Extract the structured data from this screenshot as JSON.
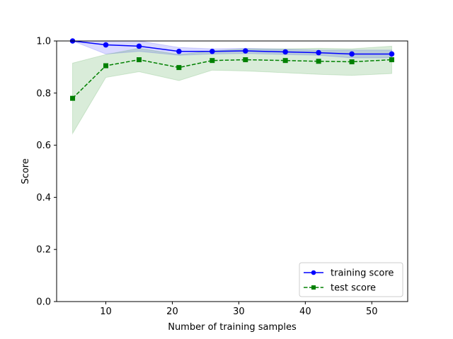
{
  "chart_data": {
    "type": "line",
    "title": "",
    "xlabel": "Number of training samples",
    "ylabel": "Score",
    "xlim": [
      2.6,
      55.4
    ],
    "ylim": [
      0.0,
      1.0
    ],
    "xticks": [
      10,
      20,
      30,
      40,
      50
    ],
    "yticks": [
      0.0,
      0.2,
      0.4,
      0.6,
      0.8,
      1.0
    ],
    "xtick_labels": [
      "10",
      "20",
      "30",
      "40",
      "50"
    ],
    "ytick_labels": [
      "0.0",
      "0.2",
      "0.4",
      "0.6",
      "0.8",
      "1.0"
    ],
    "grid": false,
    "legend": "lower-right",
    "x": [
      5,
      10,
      15,
      21,
      26,
      31,
      37,
      42,
      47,
      53
    ],
    "series": [
      {
        "name": "training score",
        "color": "#0000ff",
        "linestyle": "solid",
        "marker": "circle",
        "values": [
          1.0,
          0.985,
          0.98,
          0.96,
          0.96,
          0.962,
          0.958,
          0.955,
          0.95,
          0.95
        ],
        "band_lower": [
          1.0,
          0.95,
          0.96,
          0.945,
          0.95,
          0.952,
          0.948,
          0.945,
          0.935,
          0.935
        ],
        "band_upper": [
          1.0,
          1.0,
          1.0,
          0.975,
          0.97,
          0.972,
          0.968,
          0.965,
          0.965,
          0.965
        ]
      },
      {
        "name": "test score",
        "color": "#008000",
        "linestyle": "dashed",
        "marker": "square",
        "values": [
          0.78,
          0.905,
          0.928,
          0.898,
          0.925,
          0.928,
          0.925,
          0.922,
          0.92,
          0.928
        ],
        "band_lower": [
          0.645,
          0.86,
          0.882,
          0.848,
          0.888,
          0.885,
          0.878,
          0.872,
          0.868,
          0.875
        ],
        "band_upper": [
          0.915,
          0.948,
          0.972,
          0.948,
          0.962,
          0.97,
          0.97,
          0.972,
          0.97,
          0.98
        ]
      }
    ]
  }
}
